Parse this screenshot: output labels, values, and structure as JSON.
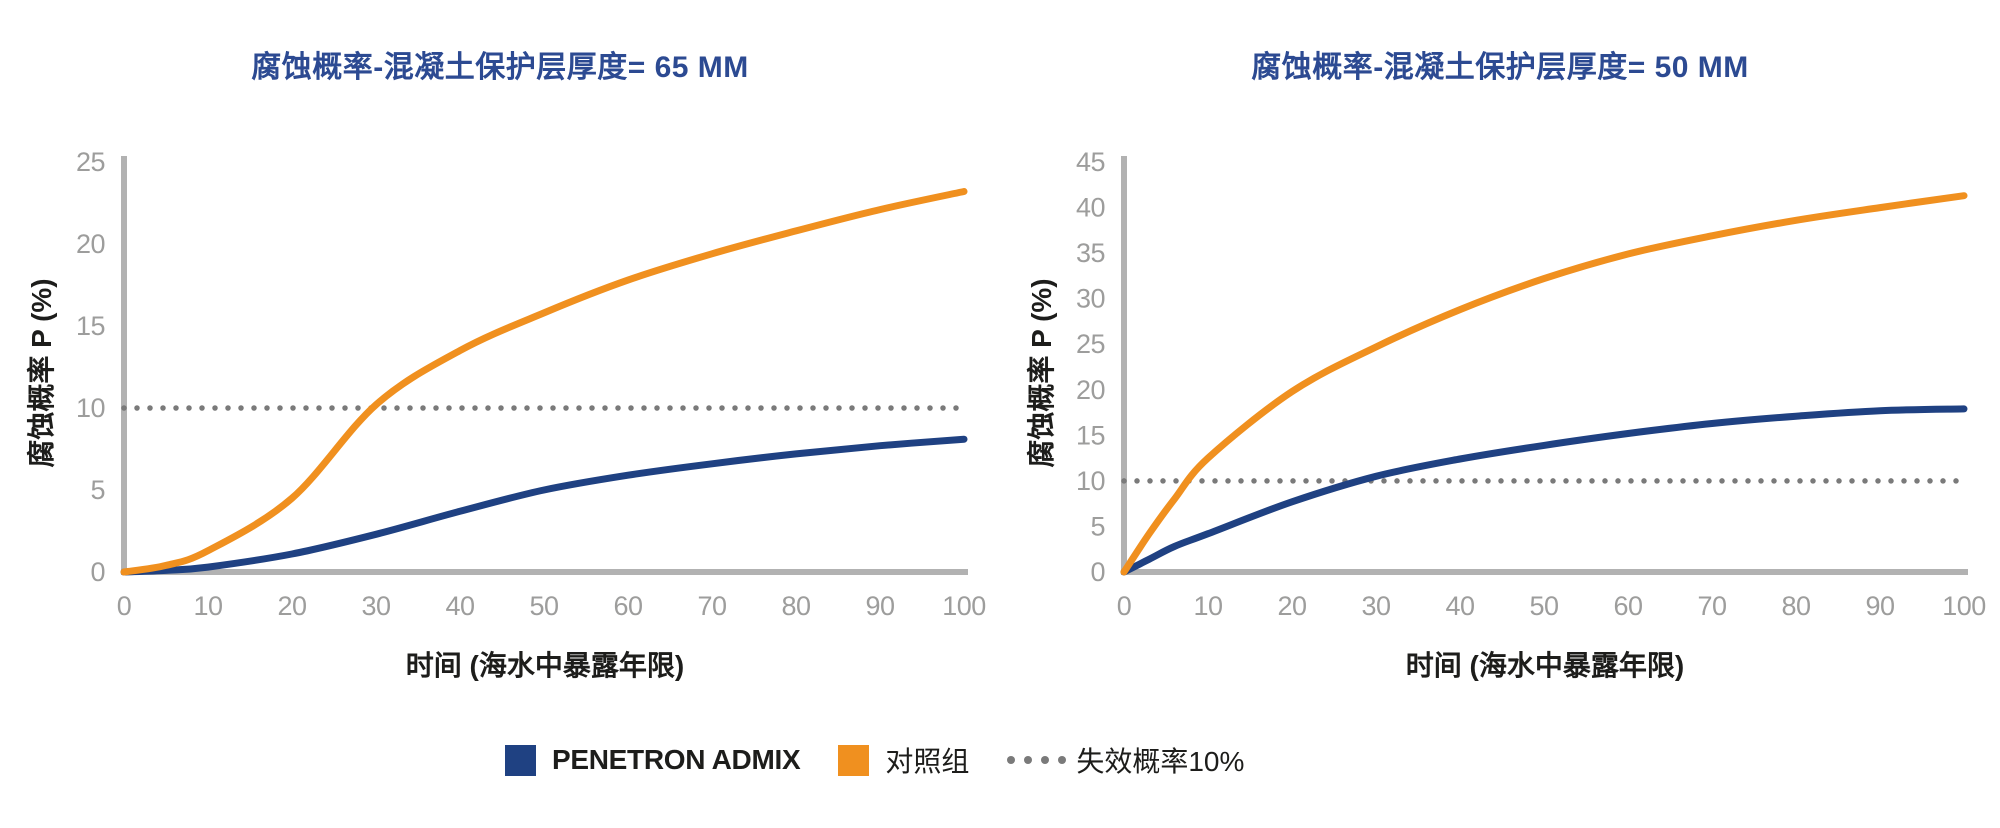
{
  "colors": {
    "background": "#ffffff",
    "admix_blue": "#1f4182",
    "control_orange": "#f0901f",
    "title_navy": "#2c4a92",
    "tick_gray": "#9d9d9c",
    "axis_gray": "#b2b2b2",
    "threshold_gray": "#7a7a7a",
    "text_black": "#1d1d1b"
  },
  "legend": {
    "items": [
      {
        "label": "PENETRON ADMIX",
        "swatch": "square",
        "color_key": "admix_blue"
      },
      {
        "label": "对照组",
        "swatch": "square",
        "color_key": "control_orange"
      },
      {
        "label": "失效概率10%",
        "swatch": "dotted-line",
        "color_key": "threshold_gray"
      }
    ]
  },
  "chart_data": [
    {
      "type": "line",
      "title": "腐蚀概率-混凝土保护层厚度= 65 MM",
      "xlabel": "时间 (海水中暴露年限)",
      "ylabel": "腐蚀概率 P (%)",
      "xlim": [
        0,
        100
      ],
      "ylim": [
        0,
        25
      ],
      "xticks": [
        0,
        10,
        20,
        30,
        40,
        50,
        60,
        70,
        80,
        90,
        100
      ],
      "yticks": [
        0,
        5,
        10,
        15,
        20,
        25
      ],
      "grid": false,
      "legend_position": "bottom-shared",
      "x": [
        0,
        5,
        10,
        20,
        30,
        40,
        50,
        60,
        70,
        80,
        90,
        100
      ],
      "series": [
        {
          "name": "PENETRON ADMIX",
          "color_key": "admix_blue",
          "values": [
            0,
            0.1,
            0.3,
            1.1,
            2.3,
            3.7,
            5.0,
            5.9,
            6.6,
            7.2,
            7.7,
            8.1
          ]
        },
        {
          "name": "对照组",
          "color_key": "control_orange",
          "values": [
            0,
            0.4,
            1.3,
            4.5,
            10.2,
            13.5,
            15.8,
            17.8,
            19.4,
            20.8,
            22.1,
            23.2
          ]
        }
      ],
      "threshold": {
        "value": 10,
        "label": "失效概率10%"
      }
    },
    {
      "type": "line",
      "title": "腐蚀概率-混凝土保护层厚度= 50 MM",
      "xlabel": "时间 (海水中暴露年限)",
      "ylabel": "腐蚀概率 P (%)",
      "xlim": [
        0,
        100
      ],
      "ylim": [
        0,
        45
      ],
      "xticks": [
        0,
        10,
        20,
        30,
        40,
        50,
        60,
        70,
        80,
        90,
        100
      ],
      "yticks": [
        0,
        5,
        10,
        15,
        20,
        25,
        30,
        35,
        40,
        45
      ],
      "grid": false,
      "legend_position": "bottom-shared",
      "x": [
        0,
        3,
        6,
        10,
        20,
        30,
        40,
        50,
        60,
        70,
        80,
        90,
        100
      ],
      "series": [
        {
          "name": "PENETRON ADMIX",
          "color_key": "admix_blue",
          "values": [
            0,
            1.4,
            2.8,
            4.2,
            7.7,
            10.5,
            12.4,
            13.9,
            15.2,
            16.3,
            17.1,
            17.7,
            17.9
          ]
        },
        {
          "name": "对照组",
          "color_key": "control_orange",
          "values": [
            0,
            4.2,
            8.0,
            12.5,
            19.8,
            24.7,
            28.8,
            32.2,
            34.9,
            36.9,
            38.6,
            40.0,
            41.3
          ]
        }
      ],
      "threshold": {
        "value": 10,
        "label": "失效概率10%"
      }
    }
  ]
}
